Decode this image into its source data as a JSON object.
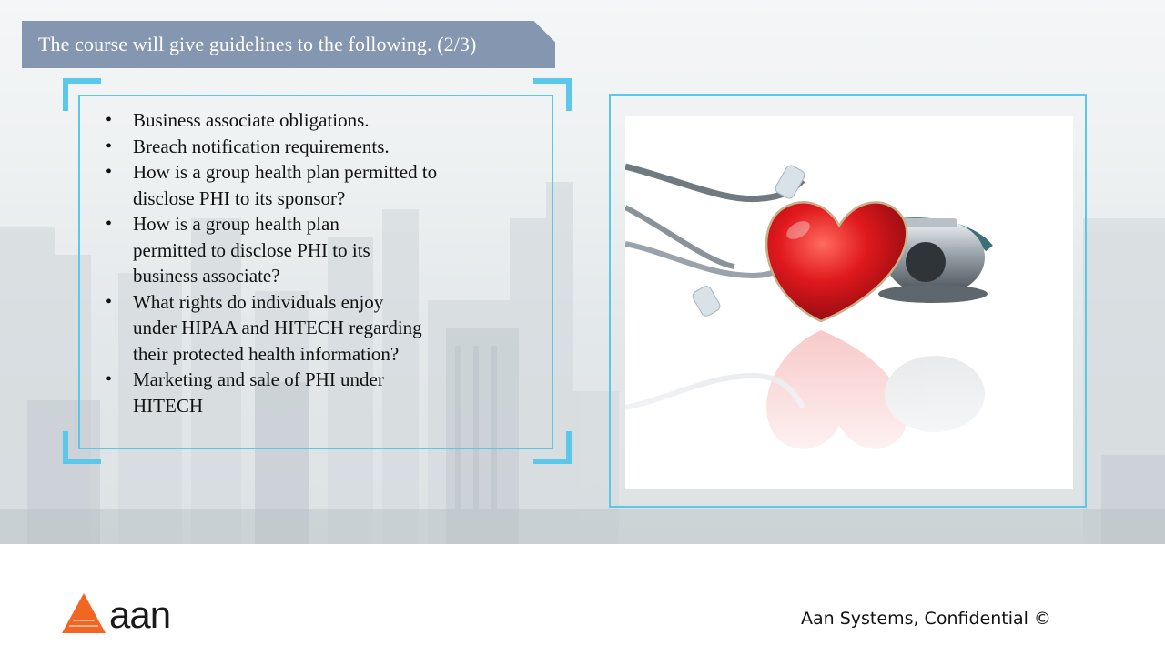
{
  "title": "The course will give guidelines to the following. (2/3)",
  "bullets": [
    "Business associate obligations.",
    "Breach notification requirements.",
    "How is a group health plan permitted to disclose PHI to its sponsor?",
    "How is a group health plan permitted to disclose PHI to its business associate?",
    "What rights do individuals enjoy under HIPAA and HITECH regarding their protected health information?",
    "Marketing and sale of PHI under HITECH"
  ],
  "image": {
    "icon": "heart-stethoscope-icon"
  },
  "footer": {
    "logo_text": "aan",
    "logo_icon": "triangle-logo-icon",
    "confidential": "Aan Systems, Confidential ©"
  },
  "colors": {
    "banner": "#8496b0",
    "frame": "#5bc8ea",
    "logo_orange": "#f26522",
    "heart_red": "#d8141b"
  }
}
